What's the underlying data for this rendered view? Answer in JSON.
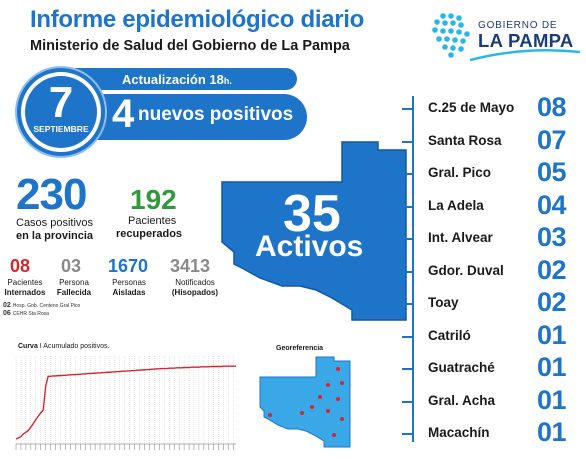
{
  "header": {
    "title": "Informe epidemiológico diario",
    "subtitle": "Ministerio de Salud del Gobierno de La Pampa"
  },
  "logo": {
    "line1": "GOBIERNO DE",
    "line2": "LA PAMPA"
  },
  "update": {
    "label": "Actualización 18",
    "suffix": "h.",
    "new_positives_count": "4",
    "new_positives_label": "nuevos positivos"
  },
  "date": {
    "day": "7",
    "month": "SEPTIEMBRE"
  },
  "totals": {
    "positive_cases": "230",
    "positive_line1": "Casos positivos",
    "positive_line2": "en la provincia",
    "recovered": "192",
    "recovered_line1": "Pacientes",
    "recovered_line2": "recuperados"
  },
  "stats": [
    {
      "value": "08",
      "line1": "Pacientes",
      "line2": "Internados"
    },
    {
      "value": "03",
      "line1": "Persona",
      "line2": "Fallecida"
    },
    {
      "value": "1670",
      "line1": "Personas",
      "line2": "Aisladas"
    },
    {
      "value": "3413",
      "line1": "Notificados",
      "line2": "(Hisopados)"
    }
  ],
  "footnotes": [
    {
      "num": "02",
      "text": "Hosp. Gob. Centeno Gral Pico"
    },
    {
      "num": "06",
      "text": "CEHR Sta Rosa"
    }
  ],
  "active": {
    "count": "35",
    "label": "Activos"
  },
  "departments": [
    {
      "name": "C.25 de Mayo",
      "count": "08"
    },
    {
      "name": "Santa Rosa",
      "count": "07"
    },
    {
      "name": "Gral. Pico",
      "count": "05"
    },
    {
      "name": "La Adela",
      "count": "04"
    },
    {
      "name": "Int. Alvear",
      "count": "03"
    },
    {
      "name": "Gdor. Duval",
      "count": "02"
    },
    {
      "name": "Toay",
      "count": "02"
    },
    {
      "name": "Catriló",
      "count": "01"
    },
    {
      "name": "Guatraché",
      "count": "01"
    },
    {
      "name": "Gral. Acha",
      "count": "01"
    },
    {
      "name": "Macachín",
      "count": "01"
    }
  ],
  "chart_data": {
    "type": "line",
    "title": "Curva",
    "subtitle": "Acumulado positivos.",
    "xlabel": "",
    "ylabel": "",
    "x": [
      1,
      2,
      3,
      4,
      5,
      6,
      7,
      8,
      9,
      10,
      11,
      12,
      13,
      14,
      15,
      16,
      17,
      18,
      19,
      20,
      21,
      22,
      23,
      24,
      25,
      26,
      27,
      28,
      29,
      30,
      31,
      32,
      33,
      34,
      35,
      36,
      37,
      38,
      39,
      40,
      41,
      42,
      43,
      44,
      45,
      46,
      47,
      48,
      49,
      50,
      51,
      52,
      53,
      54,
      55,
      56,
      57,
      58,
      59,
      60,
      61,
      62,
      63,
      64,
      65,
      66,
      67,
      68,
      69,
      70,
      71,
      72,
      73,
      74,
      75,
      76,
      77,
      78,
      79,
      80,
      81,
      82,
      83,
      84,
      85,
      86,
      87,
      88,
      89,
      90
    ],
    "values": [
      15,
      18,
      22,
      30,
      35,
      40,
      50,
      60,
      72,
      82,
      92,
      100,
      170,
      200,
      200,
      201,
      201,
      202,
      202,
      203,
      203,
      204,
      204,
      205,
      205,
      206,
      206,
      207,
      207,
      208,
      208,
      209,
      209,
      210,
      210,
      211,
      211,
      212,
      212,
      213,
      213,
      214,
      214,
      215,
      215,
      216,
      216,
      217,
      217,
      218,
      218,
      219,
      219,
      220,
      220,
      221,
      221,
      222,
      222,
      223,
      223,
      223,
      224,
      224,
      224,
      225,
      225,
      225,
      226,
      226,
      226,
      227,
      227,
      227,
      227,
      228,
      228,
      228,
      228,
      229,
      229,
      229,
      229,
      229,
      230,
      230,
      230,
      230,
      230,
      230
    ],
    "ylim": [
      0,
      260
    ],
    "grid": true,
    "line_color": "#d7262c"
  },
  "geo": {
    "title": "Georeferencia"
  },
  "colors": {
    "primary_blue": "#1e74c9",
    "light_blue": "#8dc0ee",
    "green": "#2e9a3c",
    "red": "#d7262c",
    "gray": "#8a8a8a"
  }
}
